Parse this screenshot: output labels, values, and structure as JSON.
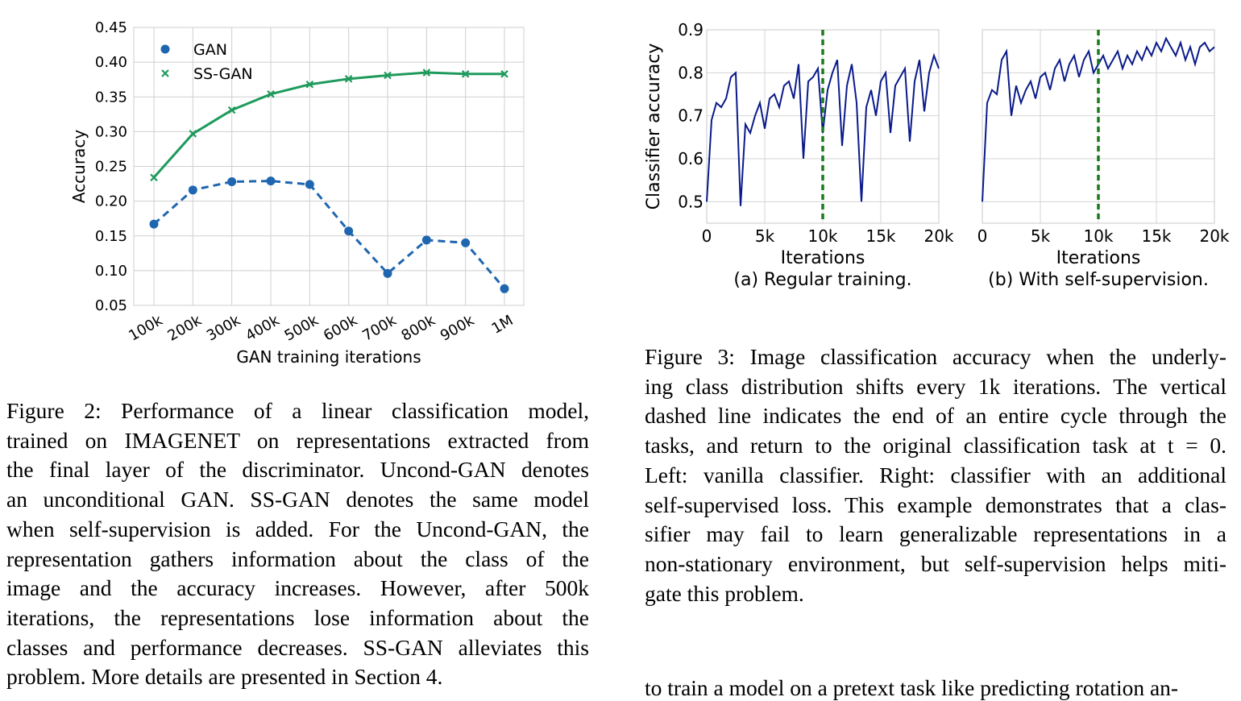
{
  "figure2": {
    "caption_lines": [
      "Figure 2:   Performance of a linear classification model,",
      "trained on IMAGENET on representations extracted from",
      "the final layer of the discriminator. Uncond-GAN denotes",
      "an unconditional GAN. SS-GAN denotes the same model",
      "when self-supervision is added. For the Uncond-GAN, the",
      "representation gathers information about the class of the",
      "image and the accuracy increases.  However, after 500k",
      "iterations, the representations lose information about the",
      "classes and performance decreases. SS-GAN alleviates this",
      "problem. More details are presented in Section 4."
    ]
  },
  "figure3": {
    "caption_lines": [
      "Figure 3:  Image classification accuracy when the underly-",
      "ing class distribution shifts every 1k iterations. The vertical",
      "dashed line indicates the end of an entire cycle through the",
      "tasks, and return to the original classification task at t = 0.",
      "Left: vanilla classifier. Right: classifier with an additional",
      "self-supervised loss. This example demonstrates that a clas-",
      "sifier may fail to learn generalizable representations in a",
      "non-stationary environment, but self-supervision helps miti-",
      "gate this problem."
    ],
    "subcaption_a": "(a) Regular training.",
    "subcaption_b": "(b) With self-supervision."
  },
  "next_text": "to train a model on a pretext task like predicting rotation an-",
  "colors": {
    "gan": "#1f66b0",
    "ssgan": "#1e9a5c",
    "fig3_line": "#0a1a8a",
    "fig3_vline": "#1a7a1a"
  },
  "chart_data": [
    {
      "type": "line",
      "xlabel": "GAN training iterations",
      "ylabel": "Accuracy",
      "categories": [
        "100k",
        "200k",
        "300k",
        "400k",
        "500k",
        "600k",
        "700k",
        "800k",
        "900k",
        "1M"
      ],
      "ylim": [
        0.05,
        0.45
      ],
      "yticks": [
        "0.05",
        "0.10",
        "0.15",
        "0.20",
        "0.25",
        "0.30",
        "0.35",
        "0.40",
        "0.45"
      ],
      "grid": true,
      "legend": "top-left",
      "series": [
        {
          "name": "GAN",
          "values": [
            0.167,
            0.216,
            0.228,
            0.229,
            0.224,
            0.157,
            0.096,
            0.144,
            0.14,
            0.074
          ],
          "style": "dashed",
          "marker": "circle"
        },
        {
          "name": "SS-GAN",
          "values": [
            0.234,
            0.297,
            0.331,
            0.354,
            0.368,
            0.376,
            0.381,
            0.385,
            0.383,
            0.383
          ],
          "style": "solid",
          "marker": "x"
        }
      ]
    },
    {
      "type": "line",
      "xlabel": "Iterations",
      "ylabel": "Classifier accuracy",
      "xlim": [
        0,
        20000
      ],
      "ylim": [
        0.45,
        0.9
      ],
      "xticks": [
        "0",
        "5k",
        "10k",
        "15k",
        "20k"
      ],
      "yticks": [
        "0.5",
        "0.6",
        "0.7",
        "0.8",
        "0.9"
      ],
      "vline_x": 10000,
      "grid": true,
      "series": [
        {
          "values": [
            0.5,
            0.69,
            0.73,
            0.72,
            0.74,
            0.79,
            0.8,
            0.49,
            0.68,
            0.66,
            0.7,
            0.73,
            0.67,
            0.74,
            0.75,
            0.72,
            0.77,
            0.78,
            0.74,
            0.82,
            0.6,
            0.78,
            0.79,
            0.81,
            0.66,
            0.76,
            0.8,
            0.83,
            0.63,
            0.77,
            0.82,
            0.73,
            0.5,
            0.72,
            0.76,
            0.7,
            0.78,
            0.8,
            0.66,
            0.77,
            0.79,
            0.81,
            0.64,
            0.78,
            0.83,
            0.71,
            0.8,
            0.84,
            0.81
          ]
        }
      ]
    },
    {
      "type": "line",
      "xlabel": "Iterations",
      "ylabel": "",
      "xlim": [
        0,
        20000
      ],
      "ylim": [
        0.45,
        0.9
      ],
      "xticks": [
        "0",
        "5k",
        "10k",
        "15k",
        "20k"
      ],
      "vline_x": 10000,
      "grid": true,
      "series": [
        {
          "values": [
            0.5,
            0.73,
            0.76,
            0.75,
            0.83,
            0.85,
            0.7,
            0.77,
            0.73,
            0.76,
            0.78,
            0.74,
            0.79,
            0.8,
            0.76,
            0.81,
            0.83,
            0.78,
            0.82,
            0.84,
            0.79,
            0.83,
            0.85,
            0.8,
            0.82,
            0.84,
            0.81,
            0.83,
            0.85,
            0.81,
            0.84,
            0.82,
            0.85,
            0.83,
            0.86,
            0.84,
            0.87,
            0.85,
            0.88,
            0.86,
            0.84,
            0.87,
            0.83,
            0.86,
            0.82,
            0.86,
            0.87,
            0.85,
            0.86
          ]
        }
      ]
    }
  ]
}
